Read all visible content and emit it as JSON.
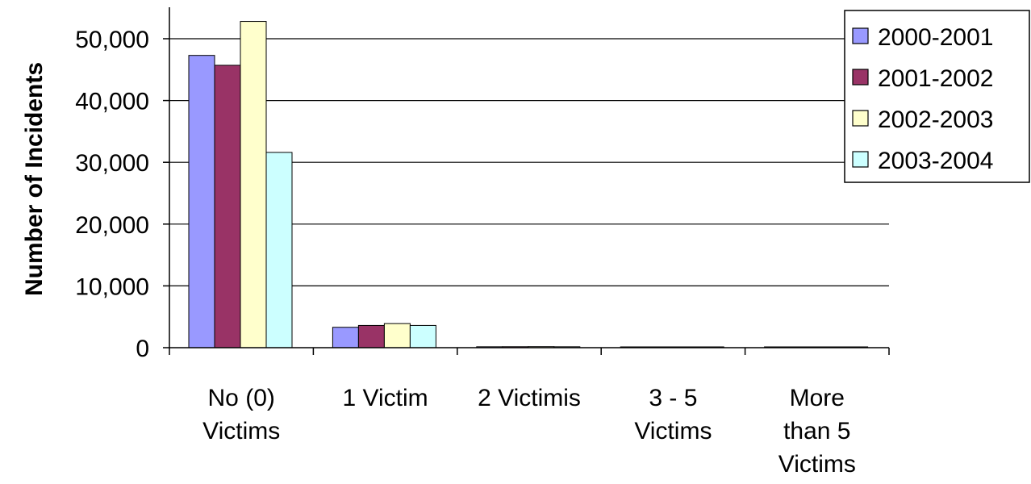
{
  "chart_data": {
    "type": "bar",
    "title": "",
    "xlabel": "",
    "ylabel": "Number of Incidents",
    "ylim": [
      0,
      50000
    ],
    "y_ticks": [
      "0",
      "10,000",
      "20,000",
      "30,000",
      "40,000",
      "50,000"
    ],
    "y_tick_values": [
      0,
      10000,
      20000,
      30000,
      40000,
      50000
    ],
    "categories": [
      [
        "No (0)",
        "Victims"
      ],
      [
        "1 Victim"
      ],
      [
        "2 Victimis"
      ],
      [
        "3 - 5",
        "Victims"
      ],
      [
        "More",
        "than 5",
        "Victims"
      ]
    ],
    "series": [
      {
        "name": "2000-2001",
        "color": "#9999ff",
        "values": [
          47300,
          3300,
          150,
          60,
          20
        ]
      },
      {
        "name": "2001-2002",
        "color": "#993366",
        "values": [
          45700,
          3600,
          160,
          60,
          20
        ]
      },
      {
        "name": "2002-2003",
        "color": "#ffffcc",
        "values": [
          52800,
          3900,
          170,
          70,
          20
        ]
      },
      {
        "name": "2003-2004",
        "color": "#ccffff",
        "values": [
          31600,
          3600,
          150,
          60,
          20
        ]
      }
    ],
    "grid": true,
    "legend_position": "top-right"
  }
}
